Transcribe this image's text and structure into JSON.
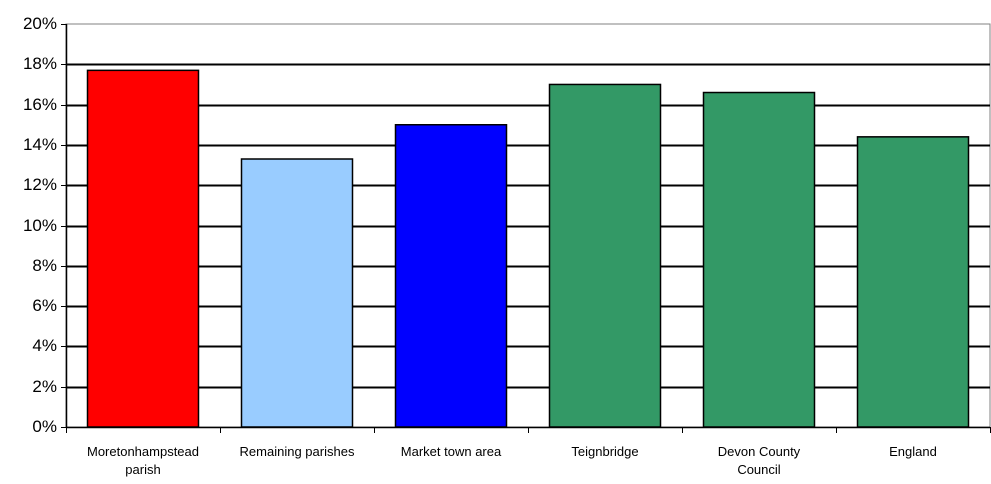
{
  "chart_data": {
    "type": "bar",
    "categories": [
      [
        "Moretonhampstead",
        "parish"
      ],
      [
        "Remaining parishes"
      ],
      [
        "Market town area"
      ],
      [
        "Teignbridge"
      ],
      [
        "Devon County",
        "Council"
      ],
      [
        "England"
      ]
    ],
    "values": [
      17.7,
      13.3,
      15.0,
      17.0,
      16.6,
      14.4
    ],
    "bar_colors": [
      "#ff0000",
      "#99ccff",
      "#0000ff",
      "#339966",
      "#339966",
      "#339966"
    ],
    "y_ticks": [
      "0%",
      "2%",
      "4%",
      "6%",
      "8%",
      "10%",
      "12%",
      "14%",
      "16%",
      "18%",
      "20%"
    ],
    "ylim": [
      0,
      20
    ],
    "grid": true,
    "legend": "none"
  }
}
